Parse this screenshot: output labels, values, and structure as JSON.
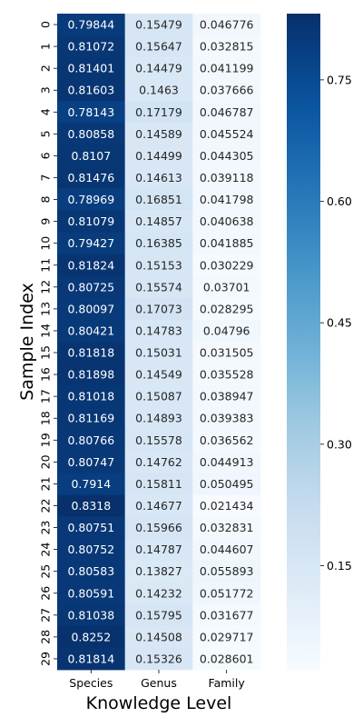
{
  "chart_data": {
    "type": "heatmap",
    "xlabel": "Knowledge Level",
    "ylabel": "Sample Index",
    "columns": [
      "Species",
      "Genus",
      "Family"
    ],
    "rows": [
      "0",
      "1",
      "2",
      "3",
      "4",
      "5",
      "6",
      "7",
      "8",
      "9",
      "10",
      "11",
      "12",
      "13",
      "14",
      "15",
      "16",
      "17",
      "18",
      "19",
      "20",
      "21",
      "22",
      "23",
      "24",
      "25",
      "26",
      "27",
      "28",
      "29"
    ],
    "values": [
      [
        0.79844,
        0.15479,
        0.046776
      ],
      [
        0.81072,
        0.15647,
        0.032815
      ],
      [
        0.81401,
        0.14479,
        0.041199
      ],
      [
        0.81603,
        0.1463,
        0.037666
      ],
      [
        0.78143,
        0.17179,
        0.046787
      ],
      [
        0.80858,
        0.14589,
        0.045524
      ],
      [
        0.8107,
        0.14499,
        0.044305
      ],
      [
        0.81476,
        0.14613,
        0.039118
      ],
      [
        0.78969,
        0.16851,
        0.041798
      ],
      [
        0.81079,
        0.14857,
        0.040638
      ],
      [
        0.79427,
        0.16385,
        0.041885
      ],
      [
        0.81824,
        0.15153,
        0.030229
      ],
      [
        0.80725,
        0.15574,
        0.03701
      ],
      [
        0.80097,
        0.17073,
        0.028295
      ],
      [
        0.80421,
        0.14783,
        0.04796
      ],
      [
        0.81818,
        0.15031,
        0.031505
      ],
      [
        0.81898,
        0.14549,
        0.035528
      ],
      [
        0.81018,
        0.15087,
        0.038947
      ],
      [
        0.81169,
        0.14893,
        0.039383
      ],
      [
        0.80766,
        0.15578,
        0.036562
      ],
      [
        0.80747,
        0.14762,
        0.044913
      ],
      [
        0.7914,
        0.15811,
        0.050495
      ],
      [
        0.8318,
        0.14677,
        0.021434
      ],
      [
        0.80751,
        0.15966,
        0.032831
      ],
      [
        0.80752,
        0.14787,
        0.044607
      ],
      [
        0.80583,
        0.13827,
        0.055893
      ],
      [
        0.80591,
        0.14232,
        0.051772
      ],
      [
        0.81038,
        0.15795,
        0.031677
      ],
      [
        0.8252,
        0.14508,
        0.029717
      ],
      [
        0.81814,
        0.15326,
        0.028601
      ]
    ],
    "vmin": 0.021434,
    "vmax": 0.8318,
    "colormap": "Blues",
    "colorbar_ticks": [
      0.15,
      0.3,
      0.45,
      0.6,
      0.75
    ],
    "colorbar_tick_labels": [
      "0.15",
      "0.30",
      "0.45",
      "0.60",
      "0.75"
    ],
    "grid": false
  }
}
